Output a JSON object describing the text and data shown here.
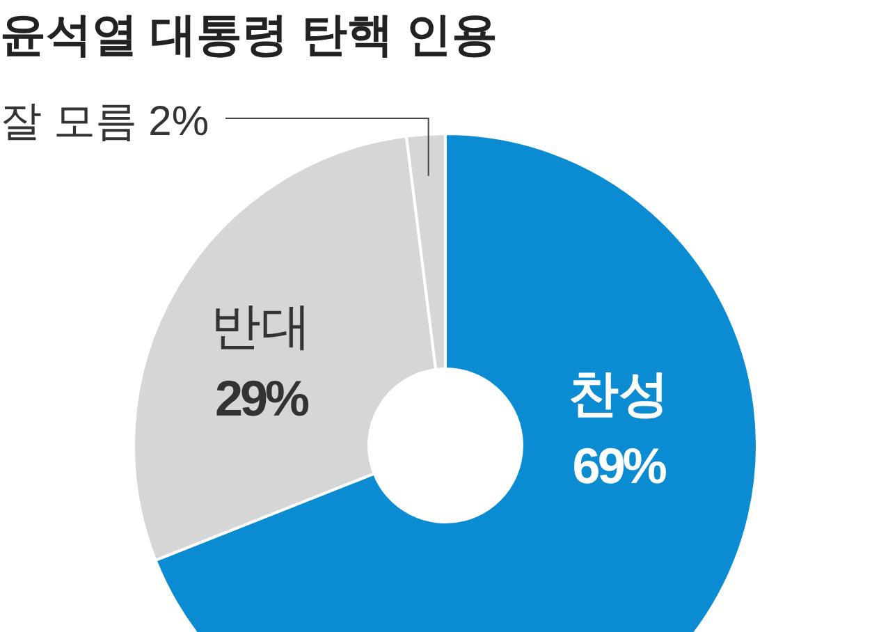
{
  "chart_data": {
    "type": "donut",
    "title": "윤석열 대통령 탄핵 인용",
    "categories": [
      "찬성",
      "반대",
      "잘 모름"
    ],
    "values": [
      69,
      29,
      2
    ],
    "colors": [
      "#0a8bd2",
      "#d5d6d8",
      "#d5d6d8"
    ],
    "value_labels": [
      "69%",
      "29%",
      "2%"
    ]
  }
}
